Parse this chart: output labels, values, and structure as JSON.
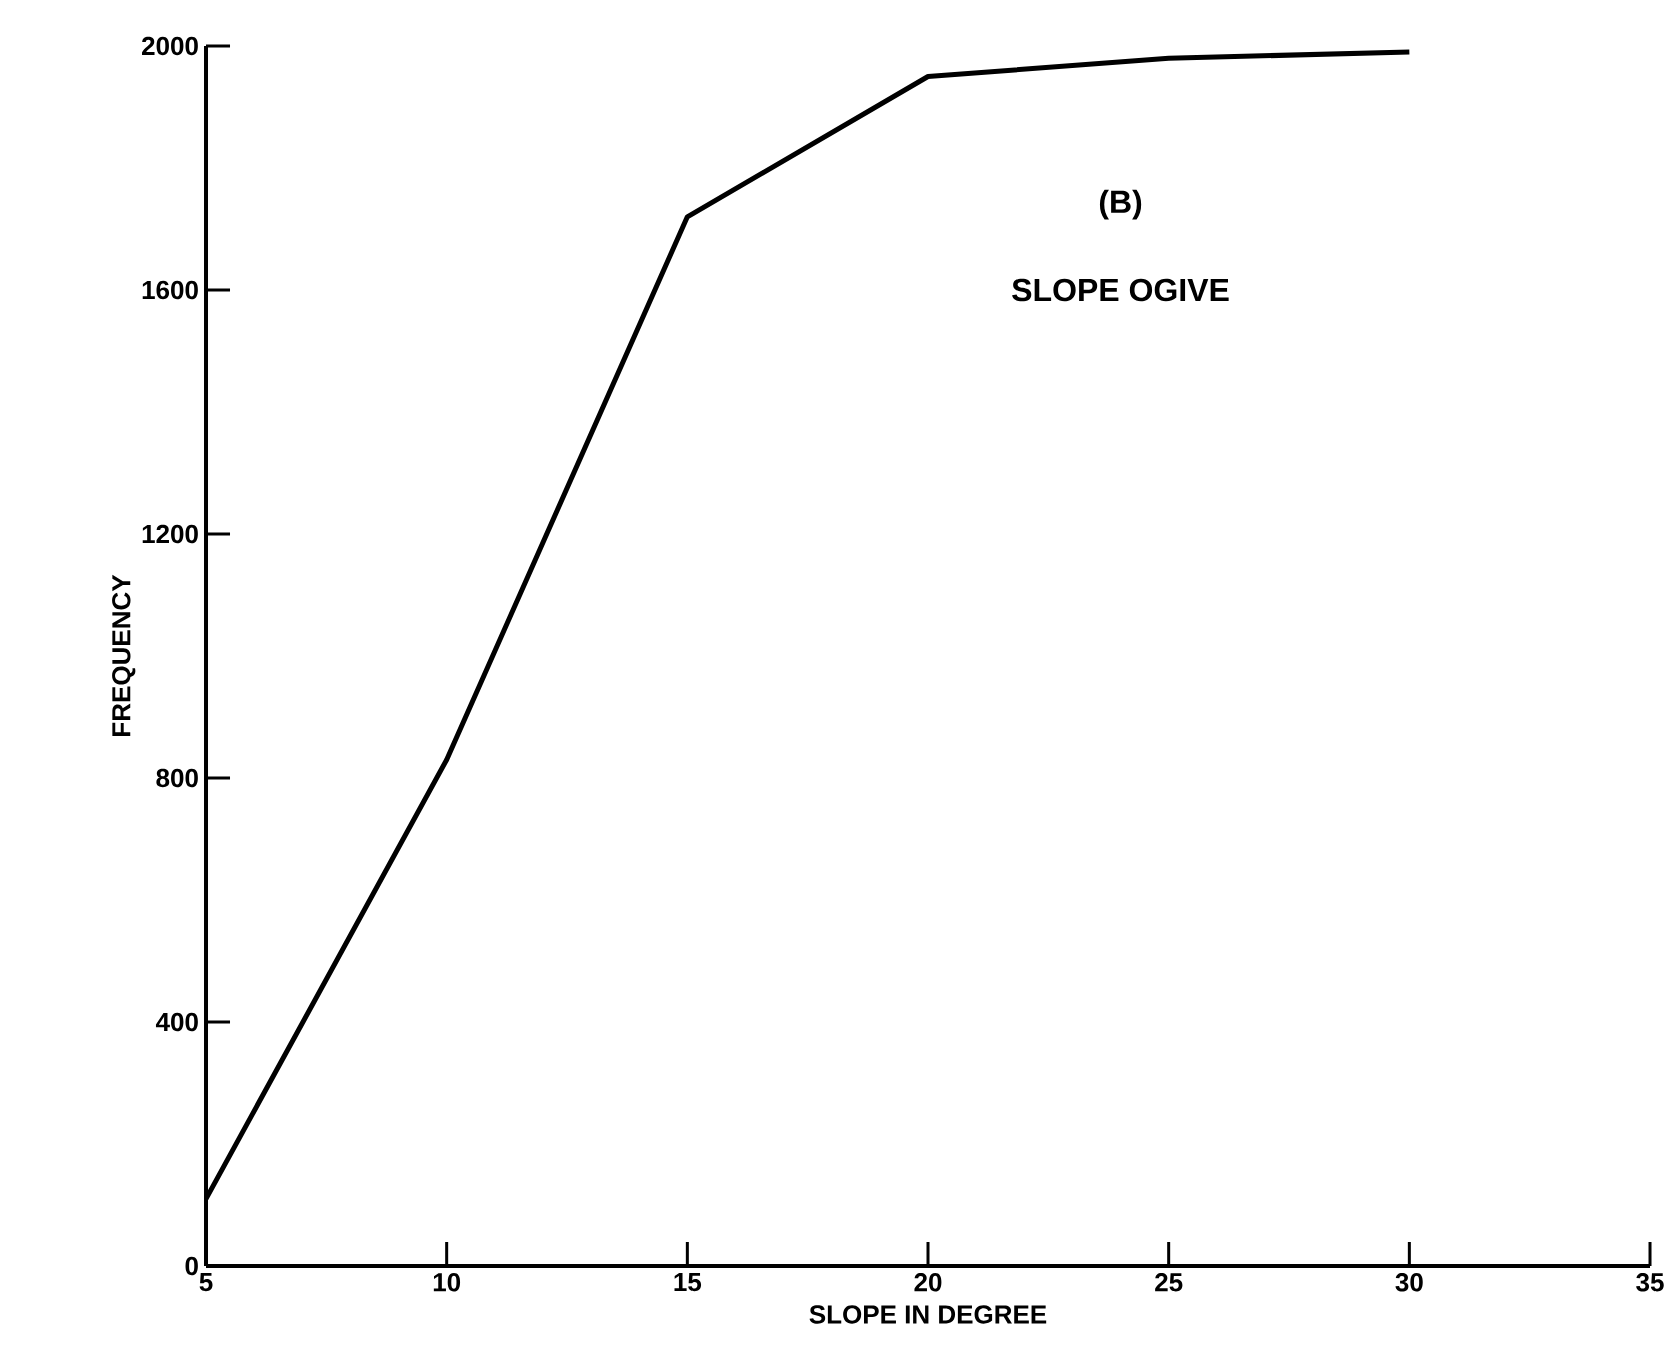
{
  "chart_data": {
    "type": "line",
    "title": "(B)",
    "subtitle": "SLOPE OGIVE",
    "xlabel": "SLOPE IN DEGREE",
    "ylabel": "FREQUENCY",
    "x": [
      5,
      10,
      15,
      20,
      25,
      30
    ],
    "series": [
      {
        "color": "#000000",
        "values": [
          110,
          830,
          1720,
          1950,
          1980,
          1990
        ]
      }
    ],
    "xlim": [
      5,
      35
    ],
    "xticks": [
      5,
      10,
      15,
      20,
      25,
      30,
      35
    ],
    "ylim": [
      0,
      2000
    ],
    "yticks": [
      0,
      400,
      800,
      1200,
      1600,
      2000
    ],
    "grid": false,
    "marker": "none",
    "line_style": "solid"
  }
}
